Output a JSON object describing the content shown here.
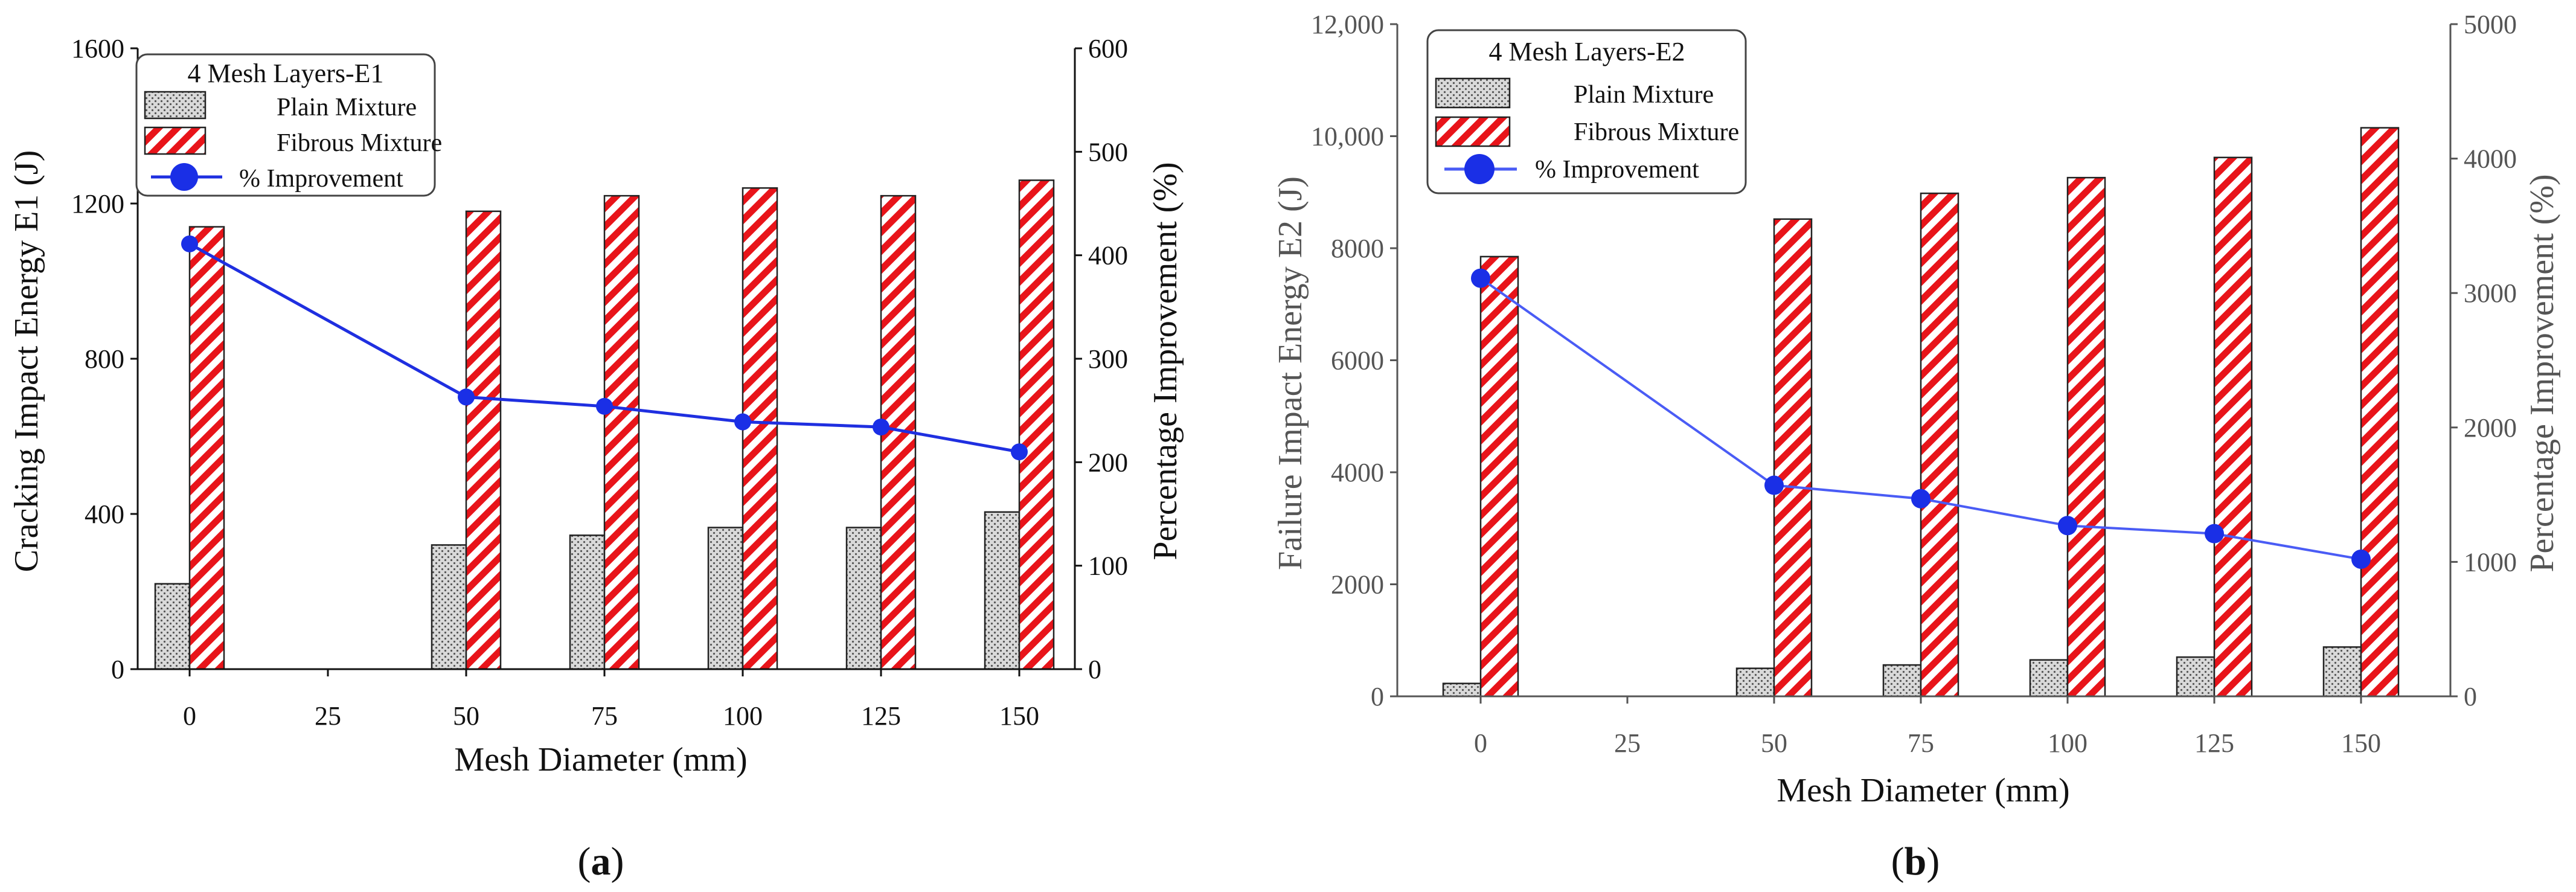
{
  "chart_data": [
    {
      "type": "bar",
      "panel": "(a)",
      "panel_letter": "a",
      "xlabel": "Mesh Diameter (mm)",
      "ylabel": "Cracking Impact Energy E1 (J)",
      "y2label": "Percentage Improvement (%)",
      "categories": [
        "0",
        "25",
        "50",
        "75",
        "100",
        "125",
        "150"
      ],
      "ylim": [
        0,
        1600
      ],
      "yticks": [
        0,
        400,
        800,
        1200,
        1600
      ],
      "ytick_labels": [
        "0",
        "400",
        "800",
        "1200",
        "1600"
      ],
      "y2lim": [
        0,
        600
      ],
      "y2ticks": [
        0,
        100,
        200,
        300,
        400,
        500,
        600
      ],
      "legend": {
        "title": "4 Mesh Layers-E1",
        "entries": [
          "Plain Mixture",
          "Fibrous Mixture",
          "% Improvement"
        ],
        "position": "top-left"
      },
      "series": [
        {
          "name": "Plain Mixture",
          "kind": "bar",
          "axis": "left",
          "values": [
            220,
            null,
            320,
            345,
            365,
            365,
            405
          ]
        },
        {
          "name": "Fibrous Mixture",
          "kind": "bar",
          "axis": "left",
          "values": [
            1140,
            null,
            1180,
            1220,
            1240,
            1220,
            1260
          ]
        },
        {
          "name": "% Improvement",
          "kind": "line",
          "axis": "right",
          "values": [
            411,
            null,
            263,
            254,
            239,
            234,
            210
          ]
        }
      ]
    },
    {
      "type": "bar",
      "panel": "(b)",
      "panel_letter": "b",
      "xlabel": "Mesh Diameter (mm)",
      "ylabel": "Failure Impact Energy E2 (J)",
      "y2label": "Percentage Improvement (%)",
      "categories": [
        "0",
        "25",
        "50",
        "75",
        "100",
        "125",
        "150"
      ],
      "ylim": [
        0,
        12000
      ],
      "yticks": [
        0,
        2000,
        4000,
        6000,
        8000,
        10000,
        12000
      ],
      "ytick_labels": [
        "0",
        "2000",
        "4000",
        "6000",
        "8000",
        "10,000",
        "12,000"
      ],
      "y2lim": [
        0,
        5000
      ],
      "y2ticks": [
        0,
        1000,
        2000,
        3000,
        4000,
        5000
      ],
      "legend": {
        "title": "4 Mesh Layers-E2",
        "entries": [
          "Plain Mixture",
          "Fibrous Mixture",
          "% Improvement"
        ],
        "position": "top-left"
      },
      "series": [
        {
          "name": "Plain Mixture",
          "kind": "bar",
          "axis": "left",
          "values": [
            230,
            null,
            500,
            560,
            650,
            700,
            880
          ]
        },
        {
          "name": "Fibrous Mixture",
          "kind": "bar",
          "axis": "left",
          "values": [
            7850,
            null,
            8520,
            8980,
            9260,
            9620,
            10150
          ]
        },
        {
          "name": "% Improvement",
          "kind": "line",
          "axis": "right",
          "values": [
            3110,
            null,
            1570,
            1470,
            1270,
            1210,
            1020
          ]
        }
      ]
    }
  ],
  "colors": {
    "fibrous_red": "#e8141a",
    "line_a": "#1f2fe0",
    "line_b": "#4a5cf5",
    "marker_blue": "#1a2fe6",
    "plain_fill": "#d8d8d8",
    "axis_gray_b": "#555555"
  }
}
